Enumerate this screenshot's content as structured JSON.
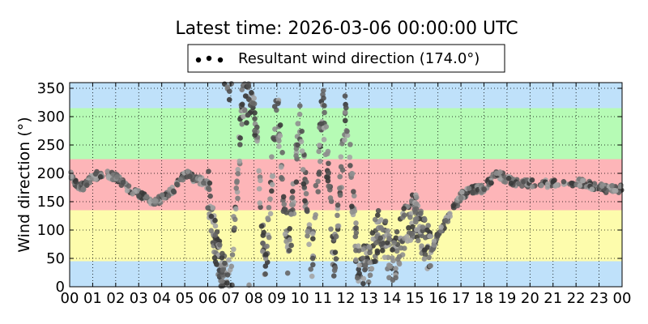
{
  "chart_data": {
    "type": "scatter",
    "title": "Latest time: 2026-03-06 00:00:00 UTC",
    "xlabel": "",
    "ylabel": "Wind direction (°)",
    "xlim": [
      0,
      24
    ],
    "ylim": [
      0,
      360
    ],
    "x_tick_labels": [
      "00",
      "01",
      "02",
      "03",
      "04",
      "05",
      "06",
      "07",
      "08",
      "09",
      "10",
      "11",
      "12",
      "13",
      "14",
      "15",
      "16",
      "17",
      "18",
      "19",
      "20",
      "21",
      "22",
      "23",
      "00"
    ],
    "y_ticks": [
      0,
      50,
      100,
      150,
      200,
      250,
      300,
      350
    ],
    "grid": true,
    "legend": {
      "placement": "top-center",
      "label": "Resultant wind direction (174.0°)"
    },
    "bands": [
      {
        "from": 0,
        "to": 45,
        "color": "#bfe1fa"
      },
      {
        "from": 45,
        "to": 135,
        "color": "#fdfcac"
      },
      {
        "from": 135,
        "to": 225,
        "color": "#fdb5b8"
      },
      {
        "from": 225,
        "to": 315,
        "color": "#b6fbb5"
      },
      {
        "from": 315,
        "to": 360,
        "color": "#bfe1fa"
      }
    ],
    "series": [
      {
        "name": "Resultant wind direction (174.0°)",
        "hour_anchors": [
          0,
          0.3,
          0.6,
          1,
          1.5,
          2,
          2.5,
          3,
          3.5,
          4,
          4.5,
          5,
          5.5,
          6,
          6.3,
          6.6,
          7,
          7.5,
          8,
          8.5,
          9,
          9.5,
          10,
          10.5,
          11,
          11.5,
          12,
          12.5,
          13,
          13.5,
          14,
          14.5,
          15,
          15.3,
          15.7,
          16,
          16.5,
          17,
          17.3,
          17.7,
          18,
          18.5,
          19,
          19.5,
          20,
          21,
          22,
          22.5,
          23,
          23.5,
          24
        ],
        "direction_anchors_deg": [
          200,
          180,
          175,
          195,
          198,
          195,
          175,
          165,
          150,
          155,
          170,
          200,
          190,
          180,
          90,
          30,
          5,
          320,
          330,
          20,
          340,
          45,
          300,
          30,
          330,
          40,
          320,
          45,
          30,
          120,
          30,
          100,
          130,
          90,
          60,
          90,
          125,
          160,
          168,
          172,
          172,
          200,
          190,
          182,
          182,
          182,
          185,
          180,
          175,
          172,
          172
        ]
      }
    ]
  },
  "colors": {
    "point": "#505050",
    "grid": "#000000",
    "axis": "#000000"
  }
}
